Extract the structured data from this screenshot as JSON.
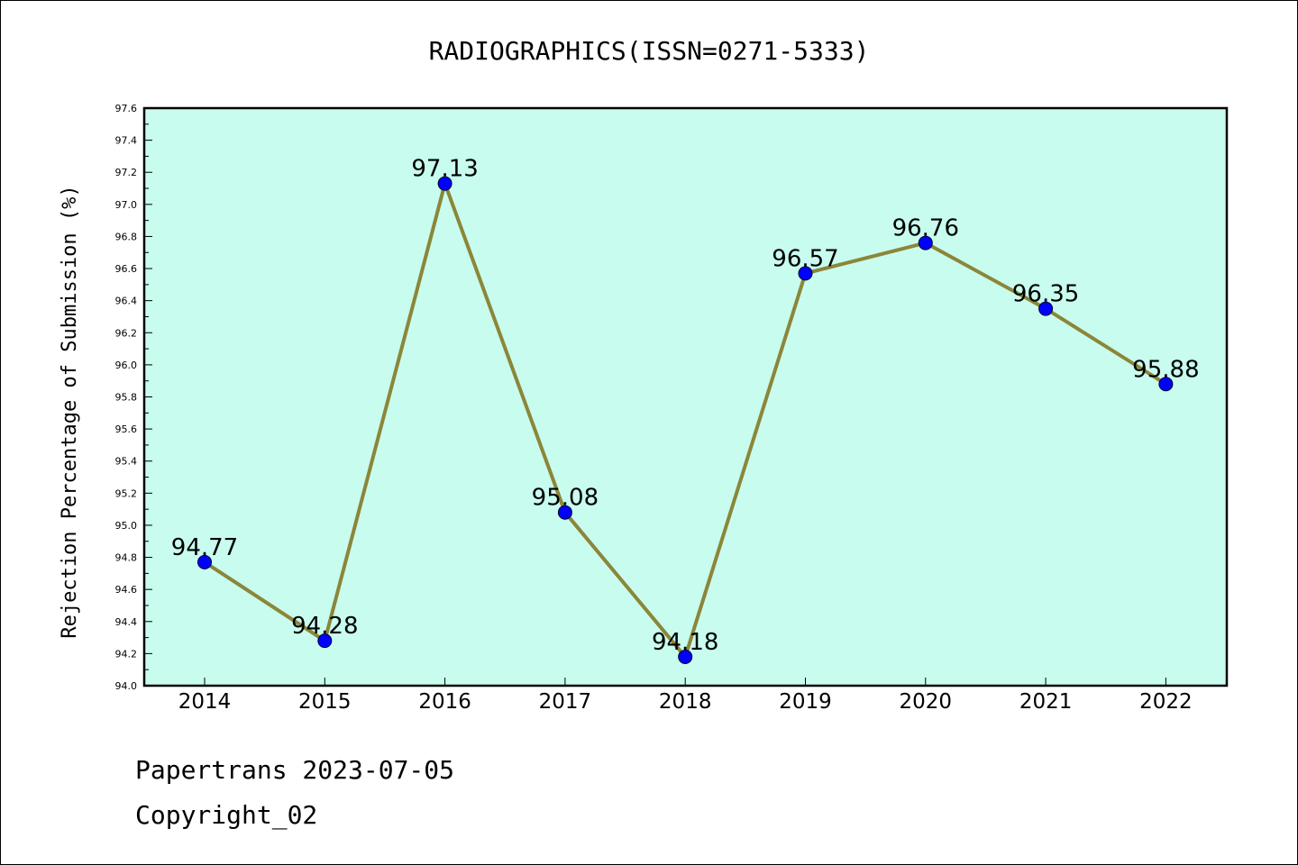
{
  "chart_data": {
    "type": "line",
    "title": "RADIOGRAPHICS(ISSN=0271-5333)",
    "ylabel": "Rejection Percentage of Submission (%)",
    "xlabel": "",
    "categories": [
      "2014",
      "2015",
      "2016",
      "2017",
      "2018",
      "2019",
      "2020",
      "2021",
      "2022"
    ],
    "values": [
      94.77,
      94.28,
      97.13,
      95.08,
      94.18,
      96.57,
      96.76,
      96.35,
      95.88
    ],
    "value_labels": [
      "94.77",
      "94.28",
      "97.13",
      "95.08",
      "94.18",
      "96.57",
      "96.76",
      "96.35",
      "95.88"
    ],
    "ylim": [
      94.0,
      97.6
    ],
    "yticks": [
      "94.0",
      "94.2",
      "94.4",
      "94.6",
      "94.8",
      "95.0",
      "95.2",
      "95.4",
      "95.6",
      "95.8",
      "96.0",
      "96.2",
      "96.4",
      "96.6",
      "96.8",
      "97.0",
      "97.2",
      "97.4",
      "97.6"
    ],
    "grid": false,
    "colors": {
      "plot_background": "#c8fcee",
      "line": "#8b8639",
      "marker": "#0000ff"
    }
  },
  "footer": {
    "line1": "Papertrans 2023-07-05",
    "line2": "Copyright_02"
  }
}
